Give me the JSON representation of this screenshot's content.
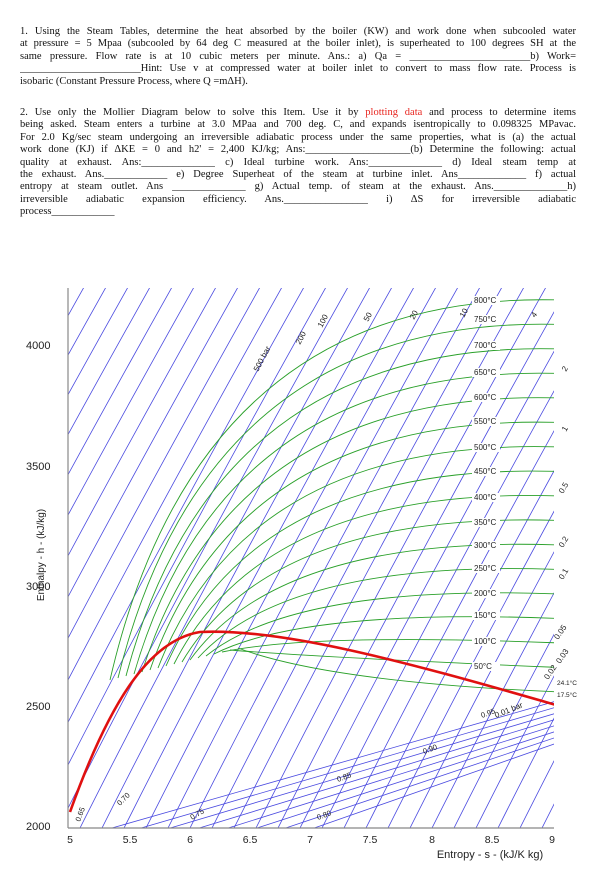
{
  "question1": {
    "lines": [
      "1. Using the Steam Tables, determine the heat absorbed by the boiler (KW) and work done when subcooled water",
      "at pressure = 5 Mpaa (subcooled by 64 deg C measured at the boiler inlet), is superheated to 100 degrees SH at the",
      "same pressure. Flow rate is at 10 cubic meters per minute. Ans.: a) Qa = _______________________b) Work=",
      "_______________________Hint: Use v at compressed water at boiler inlet to convert to mass flow rate. Process is",
      "isobaric (Constant Pressure Process, where Q =mΔH)."
    ]
  },
  "question2": {
    "first_line": {
      "before": "2. Use only the Mollier Diagram below to solve this Item. Use it by ",
      "highlight": "plotting data",
      "after": " and process to determine items",
      "highlight_color": "#e8251f"
    },
    "lines": [
      "being asked. Steam enters a turbine at 3.0 MPaa and 700 deg. C, and expands isentropically to 0.098325 MPavac.",
      "For 2.0 Kg/sec steam undergoing an irreversible adiabatic process under the same properties, what is (a) the actual",
      "work done (KJ) if ΔKE = 0 and h2' = 2,400 KJ/kg; Ans:____________________(b) Determine the following: actual",
      "quality at exhaust. Ans:______________ c) Ideal turbine work. Ans:______________ d) Ideal steam temp at",
      "the exhaust. Ans.____________ e) Degree Superheat of the steam at turbine inlet. Ans_____________ f) actual",
      "entropy at steam outlet. Ans ______________ g) Actual temp. of steam at the exhaust. Ans.______________h)",
      "irreversible adiabatic expansion efficiency. Ans.________________ i) ΔS for irreversible adiabatic",
      "process____________"
    ]
  },
  "diagram": {
    "y_axis_title": "Enthalpy - h - (kJ/kg)",
    "x_axis_title": "Entropy - s - (kJ/K kg)",
    "y_ticks": [
      "2000",
      "2500",
      "3000",
      "3500",
      "4000"
    ],
    "x_ticks": [
      "5",
      "5.5",
      "6",
      "6.5",
      "7",
      "7.5",
      "8",
      "8.5",
      "9"
    ],
    "temperature_labels": [
      "800°C",
      "750°C",
      "700°C",
      "650°C",
      "600°C",
      "550°C",
      "500°C",
      "450°C",
      "400°C",
      "350°C",
      "300°C",
      "250°C",
      "200°C",
      "150°C",
      "100°C",
      "50°C"
    ],
    "pressure_labels": [
      "500 bar",
      "200",
      "100",
      "50",
      "20",
      "10",
      "4",
      "2",
      "1",
      "0.5",
      "0.2",
      "0.1",
      "0.05",
      "0.03",
      "0.02",
      "0.01 bar"
    ],
    "quality_labels": [
      "0.95",
      "0.90",
      "0.85",
      "0.80",
      "0.75",
      "0.70",
      "0.65"
    ],
    "side_labels": [
      "24.1°C",
      "17.5°C"
    ]
  }
}
